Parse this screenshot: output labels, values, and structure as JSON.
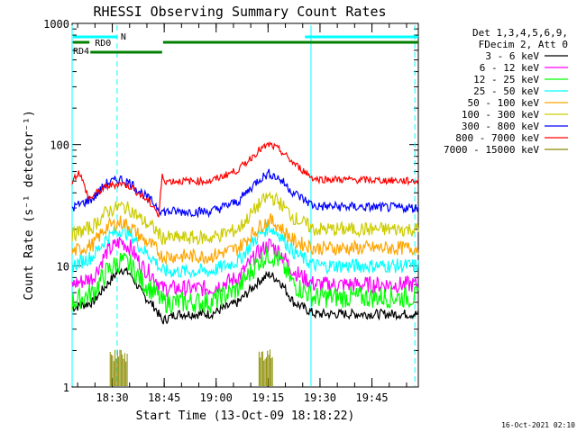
{
  "chart_data": {
    "type": "line",
    "title": "RHESSI Observing Summary Count Rates",
    "xlabel": "Start Time (13-Oct-09 18:18:22)",
    "ylabel": "Count Rate (s⁻¹ detector⁻¹)",
    "y_scale": "log",
    "ylim": [
      1,
      1000
    ],
    "xlim_minutes_since_start": [
      0,
      100
    ],
    "y_tick_labels": [
      "1",
      "10",
      "100",
      "1000"
    ],
    "x_ticks": [
      {
        "label": "18:30",
        "t": 11.6
      },
      {
        "label": "18:45",
        "t": 26.6
      },
      {
        "label": "19:00",
        "t": 41.6
      },
      {
        "label": "19:15",
        "t": 56.6
      },
      {
        "label": "19:30",
        "t": 71.6
      },
      {
        "label": "19:45",
        "t": 86.6
      }
    ],
    "legend_header": [
      "Det 1,3,4,5,6,9,",
      "FDecim 2, Att 0"
    ],
    "legend_placement": "right",
    "series": [
      {
        "name": "3 - 6 keV",
        "color": "#000000",
        "points": [
          [
            0,
            4.5
          ],
          [
            6,
            5
          ],
          [
            10,
            7
          ],
          [
            14,
            9.5
          ],
          [
            17,
            8.5
          ],
          [
            20,
            6
          ],
          [
            24,
            4.5
          ],
          [
            26,
            3.5
          ],
          [
            30,
            4
          ],
          [
            40,
            4
          ],
          [
            48,
            5
          ],
          [
            54,
            7.5
          ],
          [
            57,
            8.5
          ],
          [
            60,
            7.5
          ],
          [
            64,
            5
          ],
          [
            70,
            4
          ],
          [
            100,
            4
          ]
        ]
      },
      {
        "name": "6 - 12 keV",
        "color": "#ff00ff",
        "points": [
          [
            0,
            7
          ],
          [
            6,
            8
          ],
          [
            10,
            13
          ],
          [
            14,
            16
          ],
          [
            17,
            14
          ],
          [
            20,
            10
          ],
          [
            24,
            8
          ],
          [
            26,
            6.5
          ],
          [
            30,
            6.5
          ],
          [
            40,
            6.5
          ],
          [
            48,
            8
          ],
          [
            54,
            13
          ],
          [
            57,
            15
          ],
          [
            60,
            13
          ],
          [
            64,
            9
          ],
          [
            70,
            7
          ],
          [
            100,
            7
          ]
        ]
      },
      {
        "name": "12 - 25 keV",
        "color": "#00ff00",
        "points": [
          [
            0,
            5
          ],
          [
            6,
            6
          ],
          [
            10,
            9
          ],
          [
            14,
            11
          ],
          [
            17,
            10
          ],
          [
            20,
            7.5
          ],
          [
            24,
            6
          ],
          [
            26,
            5
          ],
          [
            30,
            5
          ],
          [
            40,
            5
          ],
          [
            48,
            6.5
          ],
          [
            54,
            11
          ],
          [
            57,
            12.5
          ],
          [
            60,
            11
          ],
          [
            64,
            7
          ],
          [
            70,
            5.5
          ],
          [
            100,
            5.5
          ]
        ]
      },
      {
        "name": "25 - 50 keV",
        "color": "#00ffff",
        "points": [
          [
            0,
            10
          ],
          [
            6,
            12
          ],
          [
            10,
            17
          ],
          [
            14,
            20
          ],
          [
            17,
            18
          ],
          [
            20,
            14
          ],
          [
            24,
            11
          ],
          [
            26,
            9
          ],
          [
            30,
            9
          ],
          [
            40,
            9
          ],
          [
            48,
            11
          ],
          [
            54,
            18
          ],
          [
            57,
            21
          ],
          [
            60,
            18
          ],
          [
            64,
            13
          ],
          [
            70,
            10
          ],
          [
            100,
            10
          ]
        ]
      },
      {
        "name": "50 - 100 keV",
        "color": "#ffa500",
        "points": [
          [
            0,
            13
          ],
          [
            6,
            15
          ],
          [
            10,
            21
          ],
          [
            14,
            23
          ],
          [
            17,
            21
          ],
          [
            20,
            17
          ],
          [
            24,
            14
          ],
          [
            26,
            12
          ],
          [
            30,
            12
          ],
          [
            40,
            12
          ],
          [
            48,
            14
          ],
          [
            54,
            21
          ],
          [
            57,
            24
          ],
          [
            60,
            21
          ],
          [
            64,
            16
          ],
          [
            70,
            14
          ],
          [
            100,
            14
          ]
        ]
      },
      {
        "name": "100 - 300 keV",
        "color": "#cccc00",
        "points": [
          [
            0,
            18
          ],
          [
            6,
            21
          ],
          [
            10,
            28
          ],
          [
            14,
            31
          ],
          [
            17,
            29
          ],
          [
            20,
            24
          ],
          [
            24,
            20
          ],
          [
            26,
            17
          ],
          [
            30,
            17
          ],
          [
            40,
            17
          ],
          [
            48,
            20
          ],
          [
            54,
            32
          ],
          [
            57,
            38
          ],
          [
            60,
            33
          ],
          [
            64,
            25
          ],
          [
            70,
            20
          ],
          [
            100,
            20
          ]
        ]
      },
      {
        "name": "300 - 800 keV",
        "color": "#0000ff",
        "points": [
          [
            0,
            30
          ],
          [
            6,
            36
          ],
          [
            10,
            48
          ],
          [
            14,
            52
          ],
          [
            17,
            48
          ],
          [
            20,
            40
          ],
          [
            24,
            32
          ],
          [
            26,
            28
          ],
          [
            30,
            28
          ],
          [
            40,
            28
          ],
          [
            48,
            34
          ],
          [
            54,
            52
          ],
          [
            57,
            58
          ],
          [
            60,
            52
          ],
          [
            64,
            40
          ],
          [
            70,
            31
          ],
          [
            100,
            30
          ]
        ]
      },
      {
        "name": "800 - 7000 keV",
        "color": "#ff0000",
        "points": [
          [
            0,
            50
          ],
          [
            2,
            60
          ],
          [
            5,
            35
          ],
          [
            6,
            38
          ],
          [
            10,
            45
          ],
          [
            14,
            48
          ],
          [
            17,
            45
          ],
          [
            20,
            38
          ],
          [
            24,
            30
          ],
          [
            25,
            25
          ],
          [
            26,
            55
          ],
          [
            27,
            50
          ],
          [
            30,
            50
          ],
          [
            40,
            50
          ],
          [
            48,
            62
          ],
          [
            54,
            90
          ],
          [
            57,
            100
          ],
          [
            60,
            90
          ],
          [
            64,
            70
          ],
          [
            70,
            52
          ],
          [
            100,
            50
          ]
        ]
      },
      {
        "name": "7000 - 15000 keV",
        "color": "#8b8b00",
        "points": []
      }
    ],
    "attenuator_bars": [
      {
        "label": "N",
        "color": "#00ffff",
        "t0": 0,
        "t1": 13
      },
      {
        "label": "",
        "color": "#00ffff",
        "t0": 67,
        "t1": 100
      }
    ],
    "decimation_bars": [
      {
        "label": "RD0",
        "color": "#008000",
        "t0": 0,
        "t1": 5
      },
      {
        "label": "RD4",
        "color": "#008000",
        "t0": 5,
        "t1": 26
      },
      {
        "label": "",
        "color": "#008000",
        "t0": 26,
        "t1": 100
      }
    ],
    "eclipse_lines_t": [
      0,
      13,
      69,
      99
    ]
  },
  "footer": {
    "timestamp": "16-Oct-2021 02:10"
  }
}
